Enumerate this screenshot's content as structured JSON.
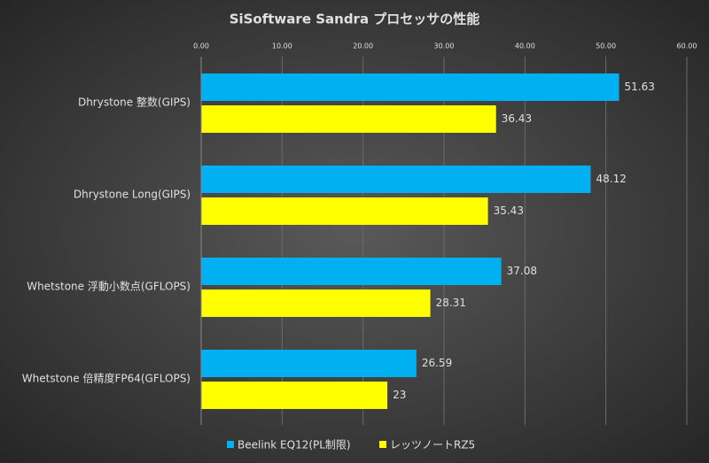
{
  "chart_data": {
    "type": "barh",
    "title": "SiSoftware  Sandra  プロセッサの性能",
    "categories": [
      "Dhrystone 整数(GIPS)",
      "Dhrystone Long(GIPS)",
      "Whetstone 浮動小数点(GFLOPS)",
      "Whetstone 倍精度FP64(GFLOPS)"
    ],
    "series": [
      {
        "name": "Beelink EQ12(PL制限)",
        "color": "#00b0f0",
        "values": [
          51.63,
          48.12,
          37.08,
          26.59
        ]
      },
      {
        "name": "レッツノートRZ5",
        "color": "#ffff00",
        "values": [
          36.43,
          35.43,
          28.31,
          23
        ]
      }
    ],
    "xlim": [
      0,
      60
    ],
    "xticks": [
      {
        "value": 0,
        "label": "0.00"
      },
      {
        "value": 10,
        "label": "10.00"
      },
      {
        "value": 20,
        "label": "20.00"
      },
      {
        "value": 30,
        "label": "30.00"
      },
      {
        "value": 40,
        "label": "40.00"
      },
      {
        "value": 50,
        "label": "50.00"
      },
      {
        "value": 60,
        "label": "60.00"
      }
    ],
    "grid": true,
    "legend": "bottom"
  }
}
